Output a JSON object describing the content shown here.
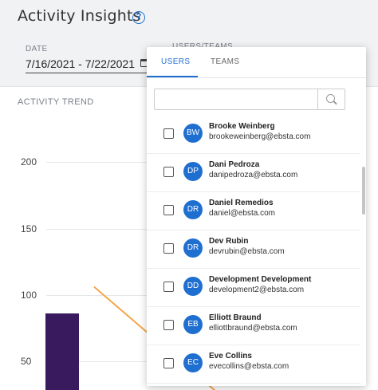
{
  "header": {
    "title": "Activity Insights",
    "help_icon": "question-circle-icon"
  },
  "filters": {
    "date_label": "DATE",
    "date_value": "7/16/2021 - 7/22/2021",
    "calendar_icon": "calendar-icon",
    "users_label": "USERS/TEAMS"
  },
  "card": {
    "title": "ACTIVITY TREND"
  },
  "chart_data": {
    "type": "bar",
    "yticks": [
      "200",
      "150",
      "100",
      "50"
    ],
    "ylim": [
      50,
      200
    ],
    "bar_value": 86,
    "trend_line": [
      [
        0,
        106
      ],
      [
        1,
        52
      ]
    ],
    "grid": true,
    "colors": {
      "bar": "#3a1a5e",
      "line": "#f5a54a"
    }
  },
  "dropdown": {
    "tabs": [
      {
        "label": "USERS",
        "active": true
      },
      {
        "label": "TEAMS",
        "active": false
      }
    ],
    "search_placeholder": "",
    "items": [
      {
        "initials": "BW",
        "name": "Brooke Weinberg",
        "email": "brookeweinberg@ebsta.com",
        "checked": false
      },
      {
        "initials": "DP",
        "name": "Dani Pedroza",
        "email": "danipedroza@ebsta.com",
        "checked": false
      },
      {
        "initials": "DR",
        "name": "Daniel Remedios",
        "email": "daniel@ebsta.com",
        "checked": false
      },
      {
        "initials": "DR",
        "name": "Dev Rubin",
        "email": "devrubin@ebsta.com",
        "checked": false
      },
      {
        "initials": "DD",
        "name": "Development Development",
        "email": "development2@ebsta.com",
        "checked": false
      },
      {
        "initials": "EB",
        "name": "Elliott Braund",
        "email": "elliottbraund@ebsta.com",
        "checked": false
      },
      {
        "initials": "EC",
        "name": "Eve Collins",
        "email": "evecollins@ebsta.com",
        "checked": false
      }
    ]
  },
  "colors": {
    "accent": "#1f6fd1",
    "avatar": "#1f6fd1"
  }
}
